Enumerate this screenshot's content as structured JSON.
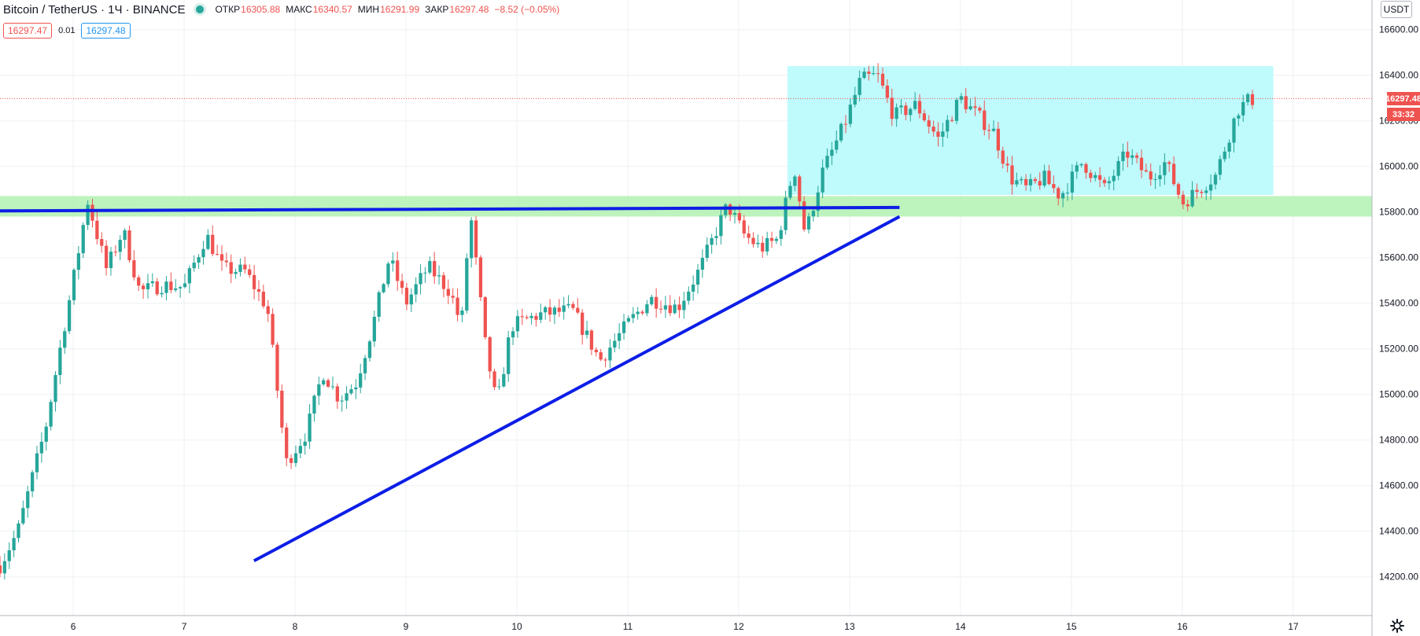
{
  "legend": {
    "symbol": "Bitcoin / TetherUS · 1Ч · BINANCE",
    "open_label": "ОТКР",
    "open": "16305.88",
    "high_label": "МАКС",
    "high": "16340.57",
    "low_label": "МИН",
    "low": "16291.99",
    "close_label": "ЗАКР",
    "close": "16297.48",
    "change": "−8.52 (−0.05%)"
  },
  "quotes": {
    "bid": "16297.47",
    "spread": "0.01",
    "ask": "16297.48"
  },
  "currency": "USDT",
  "last_price": {
    "label": "16297.48",
    "value": 16297.48,
    "countdown": "33:32"
  },
  "colors": {
    "up": "#26a69a",
    "down": "#ef5350",
    "trendline": "#0d1ee6",
    "support_zone": "#b6f2b6",
    "range_box": "#b8f9fd",
    "grid": "#eef0f3"
  },
  "chart_data": {
    "type": "candlestick",
    "y_ticks": [
      "16600.00",
      "16400.00",
      "16200.00",
      "16000.00",
      "15800.00",
      "15600.00",
      "15400.00",
      "15200.00",
      "15000.00",
      "14800.00",
      "14600.00",
      "14400.00",
      "14200.00"
    ],
    "x_ticks": [
      "6",
      "7",
      "8",
      "9",
      "10",
      "11",
      "12",
      "13",
      "14",
      "15",
      "16",
      "17"
    ],
    "ylim": [
      14030,
      16730
    ],
    "xlim": [
      5.34,
      17.71
    ],
    "grid": true,
    "annotations": {
      "support_zone": {
        "y_low": 15780,
        "y_high": 15870
      },
      "range_box": {
        "x_start": 12.44,
        "x_end": 16.82,
        "y_low": 15875,
        "y_high": 16440
      },
      "resistance_line": {
        "x0": 5.34,
        "y0": 15805,
        "x1": 13.45,
        "y1": 15820
      },
      "rising_trendline": {
        "x0": 7.63,
        "y0": 14270,
        "x1": 13.45,
        "y1": 15780
      }
    },
    "anchors": [
      [
        5.34,
        14250
      ],
      [
        5.5,
        14400
      ],
      [
        5.75,
        14850
      ],
      [
        5.9,
        15250
      ],
      [
        6.0,
        15500
      ],
      [
        6.13,
        15850
      ],
      [
        6.3,
        15550
      ],
      [
        6.45,
        15720
      ],
      [
        6.6,
        15450
      ],
      [
        6.8,
        15480
      ],
      [
        7.0,
        15470
      ],
      [
        7.2,
        15700
      ],
      [
        7.35,
        15550
      ],
      [
        7.55,
        15540
      ],
      [
        7.75,
        15380
      ],
      [
        7.92,
        14700
      ],
      [
        8.1,
        14830
      ],
      [
        8.25,
        15100
      ],
      [
        8.4,
        14980
      ],
      [
        8.55,
        15050
      ],
      [
        8.7,
        15300
      ],
      [
        8.85,
        15600
      ],
      [
        9.0,
        15400
      ],
      [
        9.2,
        15560
      ],
      [
        9.4,
        15450
      ],
      [
        9.5,
        15300
      ],
      [
        9.58,
        15800
      ],
      [
        9.72,
        15200
      ],
      [
        9.82,
        14950
      ],
      [
        9.95,
        15300
      ],
      [
        10.2,
        15350
      ],
      [
        10.5,
        15370
      ],
      [
        10.75,
        15150
      ],
      [
        11.0,
        15310
      ],
      [
        11.2,
        15420
      ],
      [
        11.45,
        15380
      ],
      [
        11.65,
        15550
      ],
      [
        11.8,
        15720
      ],
      [
        11.9,
        15830
      ],
      [
        12.05,
        15700
      ],
      [
        12.2,
        15640
      ],
      [
        12.35,
        15680
      ],
      [
        12.5,
        16000
      ],
      [
        12.6,
        15700
      ],
      [
        12.75,
        15970
      ],
      [
        12.95,
        16180
      ],
      [
        13.1,
        16380
      ],
      [
        13.25,
        16400
      ],
      [
        13.4,
        16220
      ],
      [
        13.6,
        16270
      ],
      [
        13.8,
        16120
      ],
      [
        14.0,
        16300
      ],
      [
        14.1,
        16250
      ],
      [
        14.3,
        16150
      ],
      [
        14.45,
        15950
      ],
      [
        14.6,
        15900
      ],
      [
        14.75,
        15950
      ],
      [
        14.9,
        15870
      ],
      [
        15.1,
        16020
      ],
      [
        15.3,
        15900
      ],
      [
        15.5,
        16060
      ],
      [
        15.7,
        15950
      ],
      [
        15.85,
        16020
      ],
      [
        16.0,
        15840
      ],
      [
        16.1,
        15880
      ],
      [
        16.3,
        15960
      ],
      [
        16.5,
        16250
      ],
      [
        16.6,
        16290
      ],
      [
        16.67,
        16297
      ]
    ],
    "candles_per_day": 24
  }
}
